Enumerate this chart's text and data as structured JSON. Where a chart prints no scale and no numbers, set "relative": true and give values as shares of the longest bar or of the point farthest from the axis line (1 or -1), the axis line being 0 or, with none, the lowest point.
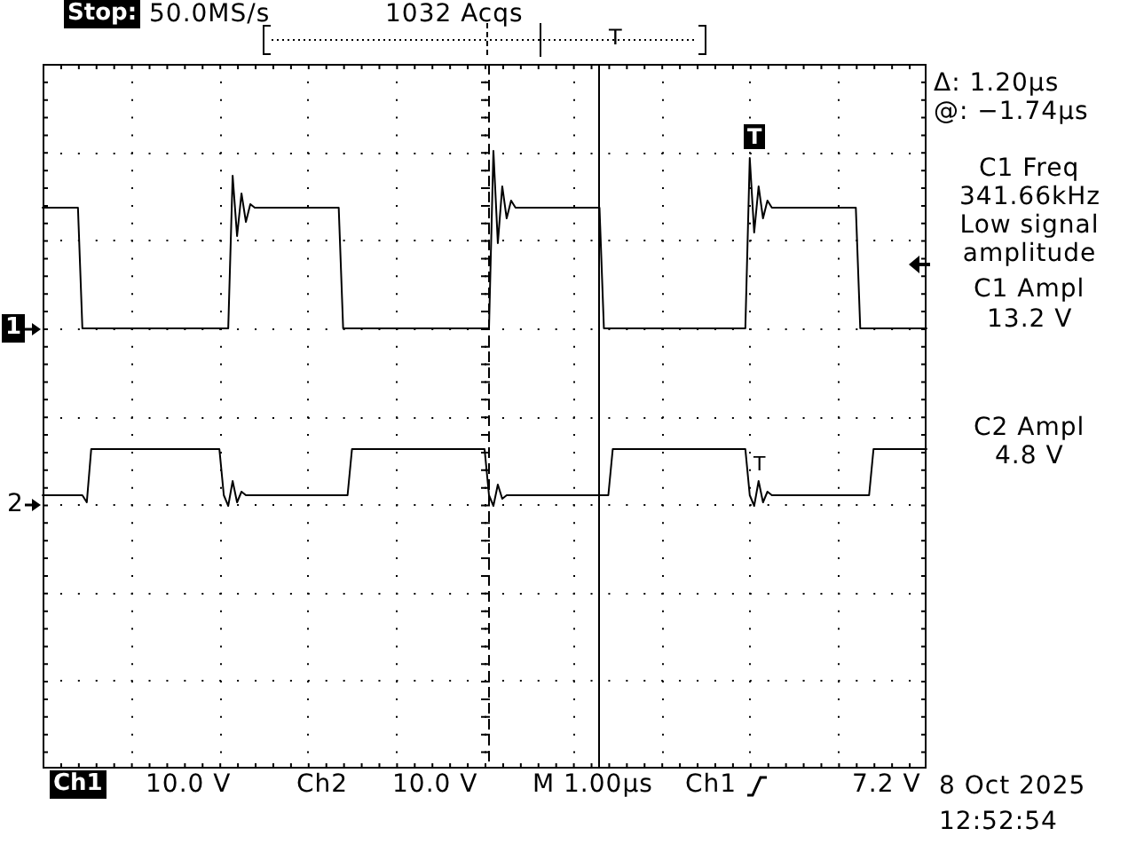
{
  "chart_data": {
    "type": "line",
    "relative": true,
    "categories": [
      null,
      null,
      null,
      null,
      null,
      null,
      null,
      null,
      null,
      null,
      null,
      null,
      null,
      null,
      null,
      null,
      null,
      null,
      null,
      null,
      null,
      null,
      null,
      null,
      null,
      null,
      null,
      null,
      null,
      null,
      null,
      null,
      null,
      null,
      null,
      null,
      null,
      null,
      null,
      null,
      null,
      null,
      null,
      null,
      null,
      null,
      null,
      null,
      null,
      null,
      null,
      null,
      null,
      null,
      null,
      null,
      null,
      null,
      null,
      null,
      null,
      null,
      null,
      null,
      null,
      null,
      null,
      null,
      null,
      null,
      null,
      null,
      null,
      null,
      null,
      null,
      null,
      null,
      null,
      null,
      null,
      null,
      null,
      null,
      null,
      null,
      null,
      null,
      null,
      null,
      null,
      null,
      null,
      null,
      null,
      null,
      null,
      null,
      null,
      null,
      null,
      null,
      null,
      null,
      null,
      null,
      null,
      null,
      null,
      null,
      null,
      null,
      null,
      null,
      null,
      null,
      null,
      null,
      null,
      null,
      null,
      null,
      null,
      null,
      null,
      null,
      null,
      null,
      null,
      null,
      null,
      null,
      null,
      null,
      null,
      null,
      null,
      null,
      null,
      null,
      null,
      null,
      null,
      null,
      null,
      null,
      null,
      null,
      null,
      null,
      null,
      null,
      null,
      null,
      null,
      null,
      null,
      null,
      null,
      null,
      null,
      null,
      null,
      null,
      null,
      null,
      null,
      null,
      null,
      null,
      null,
      null,
      null,
      null,
      null,
      null,
      null,
      null,
      null,
      null,
      null,
      null,
      null,
      null,
      null,
      null,
      null,
      null,
      null,
      null,
      null,
      null,
      null,
      null,
      null,
      null,
      null,
      null,
      null,
      null,
      null
    ],
    "series": [
      {
        "color": "#000000",
        "values": [
          0.84,
          0.84,
          0.84,
          0.84,
          0.84,
          0.84,
          0.84,
          0.84,
          0.84,
          0.5,
          0.5,
          0.5,
          0.5,
          0.5,
          0.5,
          0.5,
          0.5,
          0.5,
          0.5,
          0.5,
          0.5,
          0.5,
          0.5,
          0.5,
          0.5,
          0.5,
          0.5,
          0.5,
          0.5,
          0.5,
          0.5,
          0.5,
          0.5,
          0.5,
          0.5,
          0.5,
          0.5,
          0.5,
          0.5,
          0.5,
          0.5,
          0.5,
          0.5,
          0.93,
          0.76,
          0.88,
          0.8,
          0.85,
          0.84,
          0.84,
          0.84,
          0.84,
          0.84,
          0.84,
          0.84,
          0.84,
          0.84,
          0.84,
          0.84,
          0.84,
          0.84,
          0.84,
          0.84,
          0.84,
          0.84,
          0.84,
          0.84,
          0.84,
          0.5,
          0.5,
          0.5,
          0.5,
          0.5,
          0.5,
          0.5,
          0.5,
          0.5,
          0.5,
          0.5,
          0.5,
          0.5,
          0.5,
          0.5,
          0.5,
          0.5,
          0.5,
          0.5,
          0.5,
          0.5,
          0.5,
          0.5,
          0.5,
          0.5,
          0.5,
          0.5,
          0.5,
          0.5,
          0.5,
          0.5,
          0.5,
          0.5,
          0.5,
          1,
          0.74,
          0.9,
          0.81,
          0.86,
          0.84,
          0.84,
          0.84,
          0.84,
          0.84,
          0.84,
          0.84,
          0.84,
          0.84,
          0.84,
          0.84,
          0.84,
          0.84,
          0.84,
          0.84,
          0.84,
          0.84,
          0.84,
          0.84,
          0.84,
          0.5,
          0.5,
          0.5,
          0.5,
          0.5,
          0.5,
          0.5,
          0.5,
          0.5,
          0.5,
          0.5,
          0.5,
          0.5,
          0.5,
          0.5,
          0.5,
          0.5,
          0.5,
          0.5,
          0.5,
          0.5,
          0.5,
          0.5,
          0.5,
          0.5,
          0.5,
          0.5,
          0.5,
          0.5,
          0.5,
          0.5,
          0.5,
          0.5,
          0.98,
          0.77,
          0.9,
          0.81,
          0.86,
          0.84,
          0.84,
          0.84,
          0.84,
          0.84,
          0.84,
          0.84,
          0.84,
          0.84,
          0.84,
          0.84,
          0.84,
          0.84,
          0.84,
          0.84,
          0.84,
          0.84,
          0.84,
          0.84,
          0.84,
          0.5,
          0.5,
          0.5,
          0.5,
          0.5,
          0.5,
          0.5,
          0.5,
          0.5,
          0.5,
          0.5,
          0.5,
          0.5,
          0.5,
          0.5,
          0.5
        ]
      },
      {
        "color": "#000000",
        "values": [
          0.03,
          0.03,
          0.03,
          0.03,
          0.03,
          0.03,
          0.03,
          0.03,
          0.03,
          0.03,
          0.01,
          0.16,
          0.16,
          0.16,
          0.16,
          0.16,
          0.16,
          0.16,
          0.16,
          0.16,
          0.16,
          0.16,
          0.16,
          0.16,
          0.16,
          0.16,
          0.16,
          0.16,
          0.16,
          0.16,
          0.16,
          0.16,
          0.16,
          0.16,
          0.16,
          0.16,
          0.16,
          0.16,
          0.16,
          0.16,
          0.16,
          0.03,
          0,
          0.07,
          0.01,
          0.04,
          0.03,
          0.03,
          0.03,
          0.03,
          0.03,
          0.03,
          0.03,
          0.03,
          0.03,
          0.03,
          0.03,
          0.03,
          0.03,
          0.03,
          0.03,
          0.03,
          0.03,
          0.03,
          0.03,
          0.03,
          0.03,
          0.03,
          0.03,
          0.03,
          0.16,
          0.16,
          0.16,
          0.16,
          0.16,
          0.16,
          0.16,
          0.16,
          0.16,
          0.16,
          0.16,
          0.16,
          0.16,
          0.16,
          0.16,
          0.16,
          0.16,
          0.16,
          0.16,
          0.16,
          0.16,
          0.16,
          0.16,
          0.16,
          0.16,
          0.16,
          0.16,
          0.16,
          0.16,
          0.16,
          0.16,
          0.03,
          0,
          0.06,
          0.02,
          0.03,
          0.03,
          0.03,
          0.03,
          0.03,
          0.03,
          0.03,
          0.03,
          0.03,
          0.03,
          0.03,
          0.03,
          0.03,
          0.03,
          0.03,
          0.03,
          0.03,
          0.03,
          0.03,
          0.03,
          0.03,
          0.03,
          0.03,
          0.03,
          0.16,
          0.16,
          0.16,
          0.16,
          0.16,
          0.16,
          0.16,
          0.16,
          0.16,
          0.16,
          0.16,
          0.16,
          0.16,
          0.16,
          0.16,
          0.16,
          0.16,
          0.16,
          0.16,
          0.16,
          0.16,
          0.16,
          0.16,
          0.16,
          0.16,
          0.16,
          0.16,
          0.16,
          0.16,
          0.16,
          0.16,
          0.03,
          0,
          0.07,
          0.01,
          0.04,
          0.03,
          0.03,
          0.03,
          0.03,
          0.03,
          0.03,
          0.03,
          0.03,
          0.03,
          0.03,
          0.03,
          0.03,
          0.03,
          0.03,
          0.03,
          0.03,
          0.03,
          0.03,
          0.03,
          0.03,
          0.03,
          0.03,
          0.03,
          0.16,
          0.16,
          0.16,
          0.16,
          0.16,
          0.16,
          0.16,
          0.16,
          0.16,
          0.16,
          0.16,
          0.16,
          0.16
        ]
      }
    ],
    "annotations": [
      "Stop:",
      "50.0MS/s",
      "1032 Acqs",
      "T",
      "Δ: 1.20µs",
      "@: −1.74µs",
      "C1 Freq",
      "341.66kHz",
      "Low signal amplitude",
      "C1 Ampl",
      "13.2 V",
      "C2 Ampl",
      "4.8 V",
      "Ch1",
      "10.0 V",
      "Ch2",
      "10.0 V",
      "M 1.00µs",
      "Ch1",
      "7.2 V",
      "8 Oct 2025",
      "12:52:54",
      "T",
      "T",
      "1",
      "2"
    ]
  }
}
